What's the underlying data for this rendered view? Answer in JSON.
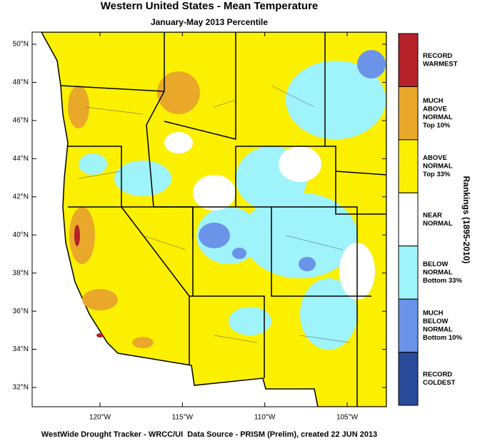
{
  "title": "Western United States - Mean Temperature",
  "subtitle": "January-May 2013 Percentile",
  "lat_ticks": [
    {
      "value": 50,
      "label": "50°N"
    },
    {
      "value": 48,
      "label": "48°N"
    },
    {
      "value": 46,
      "label": "46°N"
    },
    {
      "value": 44,
      "label": "44°N"
    },
    {
      "value": 42,
      "label": "42°N"
    },
    {
      "value": 40,
      "label": "40°N"
    },
    {
      "value": 38,
      "label": "38°N"
    },
    {
      "value": 36,
      "label": "36°N"
    },
    {
      "value": 34,
      "label": "34°N"
    },
    {
      "value": 32,
      "label": "32°N"
    }
  ],
  "lon_ticks": [
    {
      "value": -120,
      "label": "120°W"
    },
    {
      "value": -115,
      "label": "115°W"
    },
    {
      "value": -110,
      "label": "110°W"
    },
    {
      "value": -105,
      "label": "105°W"
    }
  ],
  "legend": {
    "title": "Rankings (1895-2010)",
    "items": [
      {
        "lines": [
          "RECORD",
          "WARMEST"
        ],
        "color": "#b5222a"
      },
      {
        "lines": [
          "MUCH",
          "ABOVE",
          "NORMAL",
          "Top 10%"
        ],
        "color": "#eaa82a"
      },
      {
        "lines": [
          "ABOVE",
          "NORMAL",
          "Top 33%"
        ],
        "color": "#fbf000"
      },
      {
        "lines": [
          "NEAR",
          "NORMAL"
        ],
        "color": "#ffffff"
      },
      {
        "lines": [
          "BELOW",
          "NORMAL",
          "Bottom 33%"
        ],
        "color": "#9ff3fb"
      },
      {
        "lines": [
          "MUCH",
          "BELOW",
          "NORMAL",
          "Bottom 10%"
        ],
        "color": "#6b93e8"
      },
      {
        "lines": [
          "RECORD",
          "COLDEST"
        ],
        "color": "#2a4a9a"
      }
    ]
  },
  "footer": "WestWide Drought Tracker - WRCC/UI  Data Source - PRISM (Prelim), created 22 JUN 2013"
}
